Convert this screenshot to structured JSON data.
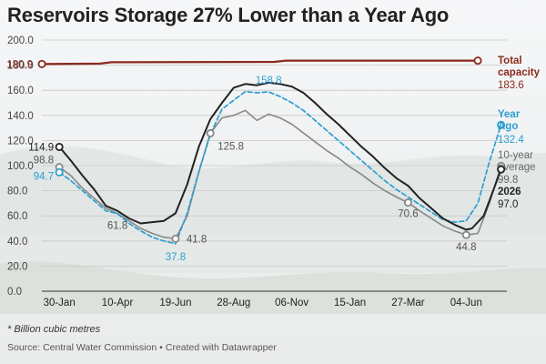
{
  "title": "Reservoirs Storage 27% Lower than a Year Ago",
  "note": "* Billion cubic metres",
  "source": {
    "text": "Source: Central Water Commission",
    "separator": "•",
    "credit": "Created with Datawrapper"
  },
  "colors": {
    "capacity": "#8b2a1e",
    "current": "#222222",
    "year_ago": "#2b9fd0",
    "avg": "#888888",
    "grid": "#c8c8c8"
  },
  "chart_data": {
    "type": "line",
    "ylim": [
      0,
      200
    ],
    "yticks": [
      "0.0",
      "20.0",
      "40.0",
      "60.0",
      "80.0",
      "100.0",
      "120.0",
      "140.0",
      "160.0",
      "180.0",
      "200.0"
    ],
    "xlim_weeks": [
      0,
      75
    ],
    "xticks": [
      {
        "label": "30-Jan",
        "week": 3
      },
      {
        "label": "10-Apr",
        "week": 13
      },
      {
        "label": "19-Jun",
        "week": 23
      },
      {
        "label": "28-Aug",
        "week": 33
      },
      {
        "label": "06-Nov",
        "week": 43
      },
      {
        "label": "15-Jan",
        "week": 53
      },
      {
        "label": "27-Mar",
        "week": 63
      },
      {
        "label": "04-Jun",
        "week": 73
      }
    ],
    "series": [
      {
        "key": "capacity",
        "name": "Total capacity",
        "points": [
          [
            0,
            180.9
          ],
          [
            10,
            181.2
          ],
          [
            12,
            182.3
          ],
          [
            40,
            182.6
          ],
          [
            42,
            183.6
          ],
          [
            75,
            183.6
          ]
        ],
        "start_label": "180.9",
        "end_label": "183.6"
      },
      {
        "key": "current",
        "name": "2026",
        "points": [
          [
            3,
            114.9
          ],
          [
            5,
            104
          ],
          [
            7,
            92
          ],
          [
            9,
            81
          ],
          [
            11,
            68
          ],
          [
            13,
            64
          ],
          [
            15,
            58
          ],
          [
            17,
            54
          ],
          [
            19,
            55
          ],
          [
            21,
            56
          ],
          [
            23,
            62
          ],
          [
            25,
            85
          ],
          [
            27,
            115
          ],
          [
            29,
            137
          ],
          [
            31,
            150
          ],
          [
            33,
            162
          ],
          [
            35,
            165
          ],
          [
            37,
            164
          ],
          [
            39,
            166
          ],
          [
            41,
            165
          ],
          [
            43,
            163
          ],
          [
            45,
            158
          ],
          [
            47,
            150
          ],
          [
            49,
            141
          ],
          [
            51,
            133
          ],
          [
            53,
            124
          ],
          [
            55,
            115
          ],
          [
            57,
            107
          ],
          [
            59,
            98
          ],
          [
            61,
            90
          ],
          [
            63,
            84
          ],
          [
            65,
            74
          ],
          [
            67,
            66
          ],
          [
            69,
            58
          ],
          [
            71,
            53
          ],
          [
            73,
            49
          ],
          [
            74,
            50
          ],
          [
            76,
            60
          ],
          [
            77,
            72
          ],
          [
            79,
            97.0
          ]
        ],
        "start_label": "114.9",
        "end_label": "97.0"
      },
      {
        "key": "year_ago",
        "name": "Year Ago",
        "points": [
          [
            3,
            94.7
          ],
          [
            5,
            88
          ],
          [
            7,
            80
          ],
          [
            9,
            72
          ],
          [
            11,
            64
          ],
          [
            13,
            61.8
          ],
          [
            15,
            54
          ],
          [
            17,
            48
          ],
          [
            19,
            43
          ],
          [
            21,
            40
          ],
          [
            23,
            37.8
          ],
          [
            25,
            62
          ],
          [
            27,
            95
          ],
          [
            29,
            125
          ],
          [
            31,
            145
          ],
          [
            33,
            152
          ],
          [
            35,
            159
          ],
          [
            37,
            158
          ],
          [
            39,
            158.8
          ],
          [
            41,
            155
          ],
          [
            43,
            150
          ],
          [
            45,
            144
          ],
          [
            47,
            136
          ],
          [
            49,
            128
          ],
          [
            51,
            120
          ],
          [
            53,
            112
          ],
          [
            55,
            104
          ],
          [
            57,
            96
          ],
          [
            59,
            88
          ],
          [
            61,
            81
          ],
          [
            63,
            75
          ],
          [
            65,
            69
          ],
          [
            67,
            63
          ],
          [
            69,
            57
          ],
          [
            71,
            55
          ],
          [
            73,
            56
          ],
          [
            75,
            70
          ],
          [
            77,
            103
          ],
          [
            79,
            132.4
          ]
        ],
        "labels": [
          "94.7",
          "158.8",
          "37.8"
        ],
        "end_label": "132.4"
      },
      {
        "key": "avg",
        "name": "10-year average",
        "points": [
          [
            3,
            98.8
          ],
          [
            5,
            92
          ],
          [
            7,
            82
          ],
          [
            9,
            74
          ],
          [
            11,
            66
          ],
          [
            13,
            61.8
          ],
          [
            15,
            56
          ],
          [
            17,
            50
          ],
          [
            19,
            46
          ],
          [
            21,
            43
          ],
          [
            23,
            41.8
          ],
          [
            25,
            60
          ],
          [
            27,
            95
          ],
          [
            29,
            125.8
          ],
          [
            31,
            138
          ],
          [
            33,
            140
          ],
          [
            35,
            144
          ],
          [
            37,
            136
          ],
          [
            39,
            141
          ],
          [
            41,
            138
          ],
          [
            43,
            133
          ],
          [
            45,
            126
          ],
          [
            47,
            119
          ],
          [
            49,
            112
          ],
          [
            51,
            106
          ],
          [
            53,
            99
          ],
          [
            55,
            93
          ],
          [
            57,
            86
          ],
          [
            59,
            80
          ],
          [
            61,
            75
          ],
          [
            63,
            70.6
          ],
          [
            65,
            64
          ],
          [
            67,
            58
          ],
          [
            69,
            52
          ],
          [
            71,
            48
          ],
          [
            73,
            44.8
          ],
          [
            75,
            46
          ],
          [
            77,
            70
          ],
          [
            79,
            99.8
          ]
        ],
        "labels": [
          "98.8",
          "61.8",
          "41.8",
          "125.8",
          "70.6",
          "44.8"
        ],
        "end_label": "99.8"
      }
    ]
  }
}
